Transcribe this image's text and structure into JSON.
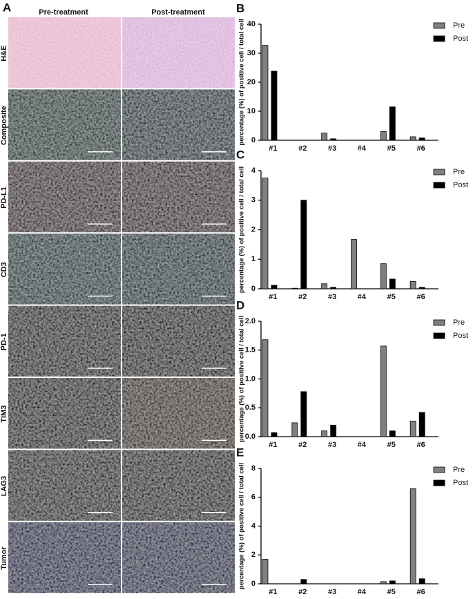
{
  "panel_a": {
    "label": "A",
    "columns": [
      "Pre-treatment",
      "Post-treatment"
    ],
    "rows": [
      "H&E",
      "Composite",
      "PD-L1",
      "CD3",
      "PD-1",
      "TIM3",
      "LAG3",
      "Tumor"
    ]
  },
  "chart_data": [
    {
      "type": "bar",
      "label": "B",
      "y_label": "percentage (%) of positive cell / total cell",
      "categories": [
        "#1",
        "#2",
        "#3",
        "#4",
        "#5",
        "#6"
      ],
      "series": [
        {
          "name": "Pre",
          "color": "#808080",
          "values": [
            32.7,
            0,
            2.5,
            0,
            3.0,
            1.2
          ]
        },
        {
          "name": "Post",
          "color": "#000000",
          "values": [
            23.8,
            0,
            0.5,
            0,
            11.5,
            0.8
          ]
        }
      ],
      "ylim": [
        0,
        40
      ],
      "yticks": [
        0,
        10,
        20,
        30,
        40
      ],
      "legend": "upper right"
    },
    {
      "type": "bar",
      "label": "C",
      "y_label": "percentage (%) of positive cell / total cell",
      "categories": [
        "#1",
        "#2",
        "#3",
        "#4",
        "#5",
        "#6"
      ],
      "series": [
        {
          "name": "Pre",
          "color": "#808080",
          "values": [
            3.75,
            0.02,
            0.17,
            1.67,
            0.85,
            0.25
          ]
        },
        {
          "name": "Post",
          "color": "#000000",
          "values": [
            0.12,
            3.0,
            0.05,
            0,
            0.33,
            0.05
          ]
        }
      ],
      "ylim": [
        0,
        4
      ],
      "yticks": [
        0,
        1,
        2,
        3,
        4
      ],
      "legend": "upper right"
    },
    {
      "type": "bar",
      "label": "D",
      "y_label": "percentage (%) of positive cell / total cell",
      "categories": [
        "#1",
        "#2",
        "#3",
        "#4",
        "#5",
        "#6"
      ],
      "series": [
        {
          "name": "Pre",
          "color": "#808080",
          "values": [
            1.68,
            0.24,
            0.1,
            0,
            1.57,
            0.27
          ]
        },
        {
          "name": "Post",
          "color": "#000000",
          "values": [
            0.07,
            0.78,
            0.2,
            0,
            0.1,
            0.42
          ]
        }
      ],
      "ylim": [
        0,
        2
      ],
      "yticks": [
        {
          "value": 0,
          "label": "0.0"
        },
        0.5,
        {
          "value": 1,
          "label": "1.0"
        },
        1.5,
        {
          "value": 2,
          "label": "2.0"
        }
      ],
      "legend": "upper right"
    },
    {
      "type": "bar",
      "label": "E",
      "y_label": "percentage (%) of positive cell / total cell",
      "categories": [
        "#1",
        "#2",
        "#3",
        "#4",
        "#5",
        "#6"
      ],
      "series": [
        {
          "name": "Pre",
          "color": "#808080",
          "values": [
            1.7,
            0,
            0,
            0,
            0.15,
            6.6
          ]
        },
        {
          "name": "Post",
          "color": "#000000",
          "values": [
            0,
            0.3,
            0,
            0,
            0.2,
            0.35
          ]
        }
      ],
      "ylim": [
        0,
        8
      ],
      "yticks": [
        0,
        2,
        4,
        6,
        8
      ],
      "legend": "upper right"
    }
  ]
}
